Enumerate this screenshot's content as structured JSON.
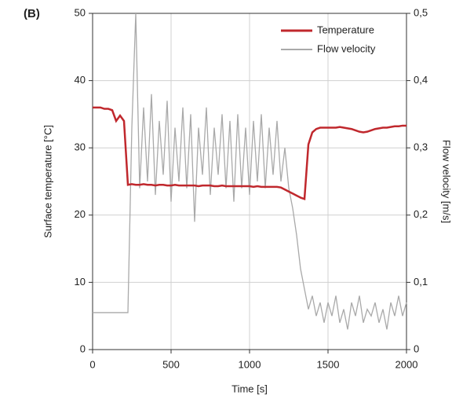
{
  "chart_data": {
    "type": "line",
    "title": "(B)",
    "x_label": "Time [s]",
    "y_label": "Surface temperature [°C]",
    "y2_label": "Flow velocity [m/s]",
    "x": [
      0,
      25,
      50,
      75,
      100,
      125,
      150,
      175,
      200,
      225,
      250,
      275,
      300,
      325,
      350,
      375,
      400,
      425,
      450,
      475,
      500,
      525,
      550,
      575,
      600,
      625,
      650,
      675,
      700,
      725,
      750,
      775,
      800,
      825,
      850,
      875,
      900,
      925,
      950,
      975,
      1000,
      1025,
      1050,
      1075,
      1100,
      1125,
      1150,
      1175,
      1200,
      1225,
      1250,
      1275,
      1300,
      1325,
      1350,
      1375,
      1400,
      1425,
      1450,
      1475,
      1500,
      1525,
      1550,
      1575,
      1600,
      1625,
      1650,
      1675,
      1700,
      1725,
      1750,
      1775,
      1800,
      1825,
      1850,
      1875,
      1900,
      1925,
      1950,
      1975,
      2000
    ],
    "series": [
      {
        "name": "Temperature",
        "color": "#c0282d",
        "axis": "y",
        "values": [
          36,
          36,
          36,
          35.8,
          35.8,
          35.6,
          34,
          34.8,
          34,
          24.5,
          24.6,
          24.5,
          24.5,
          24.6,
          24.5,
          24.5,
          24.4,
          24.5,
          24.5,
          24.4,
          24.4,
          24.5,
          24.4,
          24.4,
          24.4,
          24.4,
          24.4,
          24.3,
          24.4,
          24.4,
          24.4,
          24.3,
          24.3,
          24.4,
          24.3,
          24.3,
          24.3,
          24.3,
          24.3,
          24.3,
          24.3,
          24.2,
          24.3,
          24.2,
          24.2,
          24.2,
          24.2,
          24.2,
          24.1,
          23.8,
          23.5,
          23.2,
          22.9,
          22.6,
          22.4,
          30.5,
          32.3,
          32.8,
          33,
          33,
          33,
          33,
          33,
          33.1,
          33,
          32.9,
          32.8,
          32.6,
          32.4,
          32.3,
          32.4,
          32.6,
          32.8,
          32.9,
          33,
          33,
          33.1,
          33.2,
          33.2,
          33.3,
          33.3
        ]
      },
      {
        "name": "Flow velocity",
        "color": "#a9a9a9",
        "axis": "y2",
        "values": [
          0.055,
          0.055,
          0.055,
          0.055,
          0.055,
          0.055,
          0.055,
          0.055,
          0.055,
          0.055,
          0.33,
          0.5,
          0.24,
          0.36,
          0.25,
          0.38,
          0.23,
          0.34,
          0.26,
          0.37,
          0.22,
          0.33,
          0.25,
          0.36,
          0.24,
          0.35,
          0.19,
          0.33,
          0.26,
          0.36,
          0.23,
          0.33,
          0.26,
          0.35,
          0.24,
          0.34,
          0.22,
          0.35,
          0.24,
          0.33,
          0.23,
          0.34,
          0.25,
          0.35,
          0.24,
          0.33,
          0.26,
          0.34,
          0.25,
          0.3,
          0.24,
          0.21,
          0.17,
          0.12,
          0.09,
          0.06,
          0.08,
          0.05,
          0.07,
          0.04,
          0.07,
          0.05,
          0.08,
          0.04,
          0.06,
          0.03,
          0.07,
          0.05,
          0.08,
          0.04,
          0.06,
          0.05,
          0.07,
          0.04,
          0.06,
          0.03,
          0.07,
          0.05,
          0.08,
          0.05,
          0.07
        ]
      }
    ],
    "xlim": [
      0,
      2000
    ],
    "xticks": [
      0,
      500,
      1000,
      1500,
      2000
    ],
    "ylim": [
      0,
      50
    ],
    "yticks": [
      0,
      10,
      20,
      30,
      40,
      50
    ],
    "y2lim": [
      0,
      0.5
    ],
    "y2ticks": [
      0,
      {
        "value": 0.1,
        "label": "0,1"
      },
      {
        "value": 0.2,
        "label": "0,2"
      },
      {
        "value": 0.3,
        "label": "0,3"
      },
      {
        "value": 0.4,
        "label": "0,4"
      },
      {
        "value": 0.5,
        "label": "0,5"
      }
    ],
    "grid": true,
    "legend": "upper right"
  }
}
